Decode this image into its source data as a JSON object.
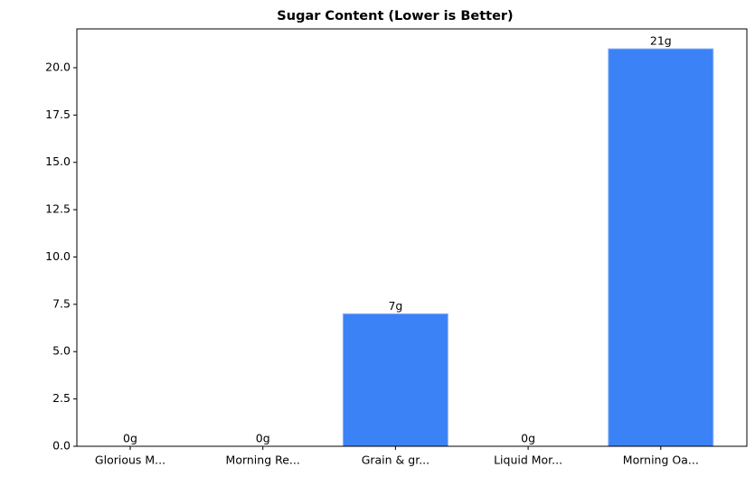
{
  "chart_data": {
    "type": "bar",
    "title": "Sugar Content (Lower is Better)",
    "categories": [
      "Glorious M...",
      "Morning Re...",
      "Grain & gr...",
      "Liquid Mor...",
      "Morning Oa..."
    ],
    "values": [
      0,
      0,
      7,
      0,
      21
    ],
    "value_labels": [
      "0g",
      "0g",
      "7g",
      "0g",
      "21g"
    ],
    "color": "#3b82f6",
    "ylim": [
      0,
      22.05
    ],
    "yticks": [
      {
        "value": 0,
        "label": "0.0"
      },
      {
        "value": 2.5,
        "label": "2.5"
      },
      {
        "value": 5,
        "label": "5.0"
      },
      {
        "value": 7.5,
        "label": "7.5"
      },
      {
        "value": 10,
        "label": "10.0"
      },
      {
        "value": 12.5,
        "label": "12.5"
      },
      {
        "value": 15,
        "label": "15.0"
      },
      {
        "value": 17.5,
        "label": "17.5"
      },
      {
        "value": 20,
        "label": "20.0"
      }
    ]
  }
}
